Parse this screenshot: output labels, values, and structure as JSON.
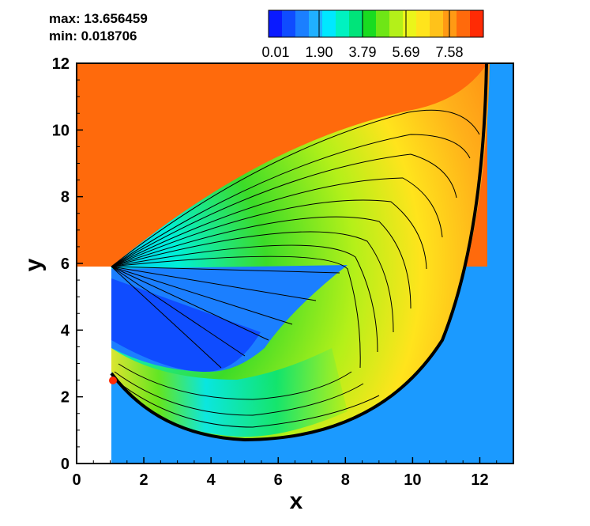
{
  "stats": {
    "max_text": "max: 13.656459",
    "min_text": "min: 0.018706"
  },
  "colorbar": {
    "tick_labels": [
      "0.01",
      "1.90",
      "3.79",
      "5.69",
      "7.58"
    ],
    "colors": [
      "#0a1aff",
      "#0f4cff",
      "#1b7fff",
      "#20b0ff",
      "#00e8ff",
      "#00f2c0",
      "#00e47a",
      "#19dc20",
      "#6ee616",
      "#b4f019",
      "#ebf51a",
      "#ffe41c",
      "#ffc21a",
      "#ff9a14",
      "#ff6a0c",
      "#ff2b05"
    ]
  },
  "chart_data": {
    "type": "heatmap",
    "title": "",
    "xlabel": "x",
    "ylabel": "y",
    "xlim": [
      0,
      13
    ],
    "ylim": [
      0,
      12
    ],
    "xticks": [
      0,
      2,
      4,
      6,
      8,
      10,
      12
    ],
    "yticks": [
      0,
      2,
      4,
      6,
      8,
      10,
      12
    ],
    "value_range": [
      0.018706,
      13.656459
    ],
    "colorbar_ticks": [
      0.01,
      1.9,
      3.79,
      5.69,
      7.58
    ],
    "colors": {
      "upper_region": "#ff6a0c",
      "right_region": "#1b9aff",
      "bow_shock": "#000000"
    }
  }
}
